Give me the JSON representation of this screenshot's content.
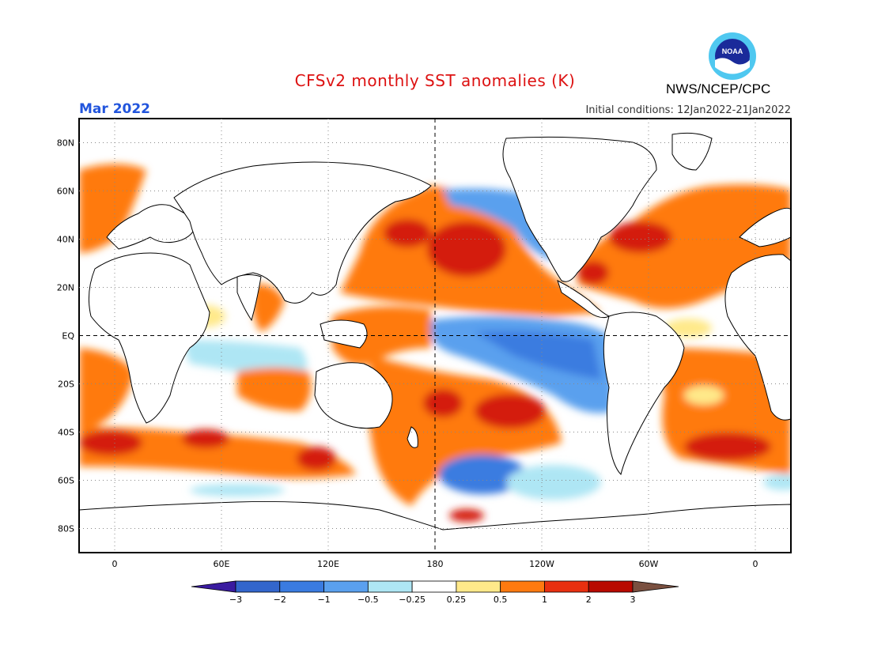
{
  "title": "CFSv2 monthly SST anomalies (K)",
  "month_label": "Mar 2022",
  "initial_conditions": "Initial conditions: 12Jan2022-21Jan2022",
  "agency": "NWS/NCEP/CPC",
  "logo_text": "NOAA",
  "colors": {
    "title": "#dd1111",
    "month": "#2255dd",
    "land": "#ffffff",
    "coast": "#000000"
  },
  "map": {
    "lon_ticks": [
      "0",
      "60E",
      "120E",
      "180",
      "120W",
      "60W",
      "0"
    ],
    "lon_values": [
      0,
      60,
      120,
      180,
      240,
      300,
      360
    ],
    "lat_ticks": [
      "80N",
      "60N",
      "40N",
      "20N",
      "EQ",
      "20S",
      "40S",
      "60S",
      "80S"
    ],
    "lat_values": [
      80,
      60,
      40,
      20,
      0,
      -20,
      -40,
      -60,
      -80
    ],
    "lon_range": [
      -20,
      380
    ],
    "lat_range": [
      -90,
      90
    ]
  },
  "colorbar": {
    "labels": [
      "-3",
      "-2",
      "-1",
      "-0.5",
      "-0.25",
      "0.25",
      "0.5",
      "1",
      "2",
      "3"
    ],
    "colors": [
      "#3366cc",
      "#3a7be0",
      "#5aa0ee",
      "#aee6f4",
      "#ffffff",
      "#ffe98a",
      "#ff7a10",
      "#e83010",
      "#b80a00"
    ],
    "low_extend_color": "#3a1ba0",
    "high_extend_color": "#7a5040"
  },
  "chart_data": {
    "type": "heatmap",
    "title": "CFSv2 monthly SST anomalies (K)",
    "units": "K",
    "valid_month": "Mar 2022",
    "initial_conditions": "12Jan2022-21Jan2022",
    "levels": [
      -3,
      -2,
      -1,
      -0.5,
      -0.25,
      0.25,
      0.5,
      1,
      2,
      3
    ],
    "features": [
      {
        "region": "Central-eastern equatorial Pacific (La Nina)",
        "anomaly_K": -1.0
      },
      {
        "region": "North Pacific (Kuroshio extension)",
        "anomaly_K": 2.0
      },
      {
        "region": "Western tropical Pacific",
        "anomaly_K": 1.0
      },
      {
        "region": "South Pacific (30S, 150W)",
        "anomaly_K": 2.0
      },
      {
        "region": "Southern Ocean near 60S, 130W",
        "anomaly_K": -1.0
      },
      {
        "region": "Northwest Atlantic (Gulf Stream)",
        "anomaly_K": 2.0
      },
      {
        "region": "South Atlantic 40S",
        "anomaly_K": 2.0
      },
      {
        "region": "Indian Ocean near 10S",
        "anomaly_K": -0.25
      }
    ]
  }
}
